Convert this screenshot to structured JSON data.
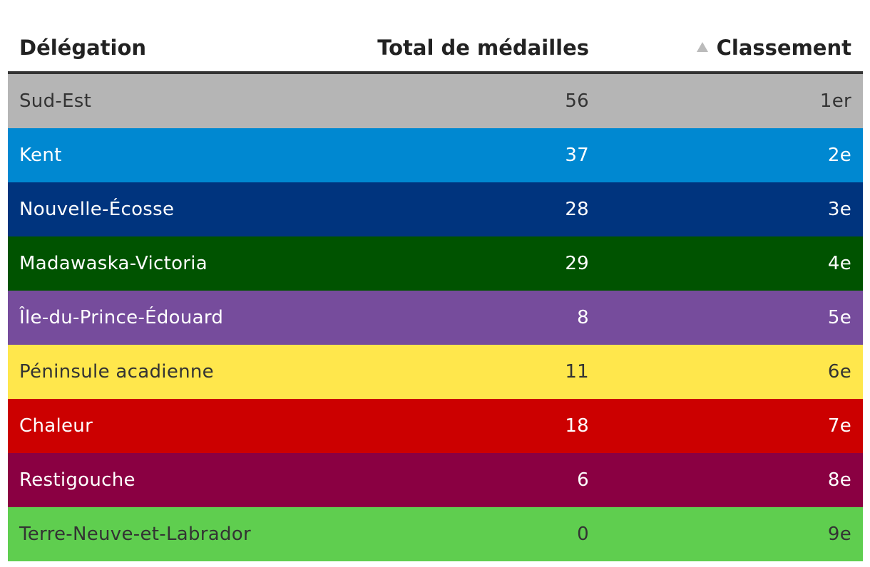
{
  "chart_data": {
    "type": "table",
    "columns": [
      "Délégation",
      "Total de médailles",
      "Classement"
    ],
    "sorted_by": "Classement",
    "sort_direction": "ascending",
    "rows": [
      {
        "delegation": "Sud-Est",
        "total": "56",
        "rank": "1er",
        "bg": "#b5b5b5",
        "fg": "#333333"
      },
      {
        "delegation": "Kent",
        "total": "37",
        "rank": "2e",
        "bg": "#0088d1",
        "fg": "#ffffff"
      },
      {
        "delegation": "Nouvelle-Écosse",
        "total": "28",
        "rank": "3e",
        "bg": "#00347e",
        "fg": "#ffffff"
      },
      {
        "delegation": "Madawaska-Victoria",
        "total": "29",
        "rank": "4e",
        "bg": "#005300",
        "fg": "#ffffff"
      },
      {
        "delegation": "Île-du-Prince-Édouard",
        "total": "8",
        "rank": "5e",
        "bg": "#764c9c",
        "fg": "#ffffff"
      },
      {
        "delegation": "Péninsule acadienne",
        "total": "11",
        "rank": "6e",
        "bg": "#ffe74c",
        "fg": "#333333"
      },
      {
        "delegation": "Chaleur",
        "total": "18",
        "rank": "7e",
        "bg": "#cc0000",
        "fg": "#ffffff"
      },
      {
        "delegation": "Restigouche",
        "total": "6",
        "rank": "8e",
        "bg": "#8a0042",
        "fg": "#ffffff"
      },
      {
        "delegation": "Terre-Neuve-et-Labrador",
        "total": "0",
        "rank": "9e",
        "bg": "#5fce4f",
        "fg": "#333333"
      }
    ]
  }
}
